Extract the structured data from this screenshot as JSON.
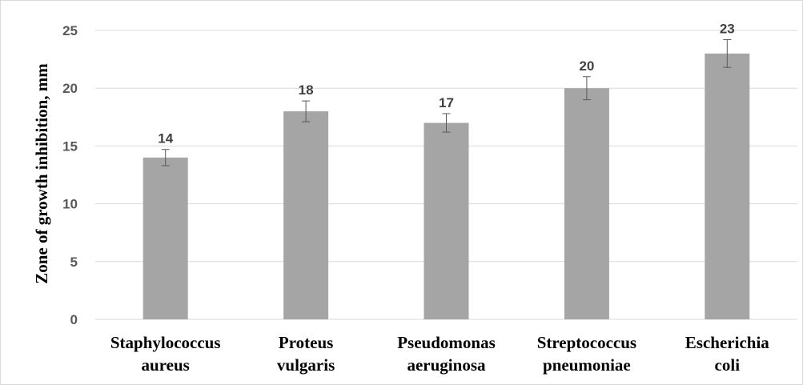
{
  "chart_data": {
    "type": "bar",
    "title": "",
    "xlabel": "",
    "ylabel": "Zone of growth inhibition, mm",
    "categories": [
      [
        "Staphylococcus",
        "aureus"
      ],
      [
        "Proteus",
        "vulgaris"
      ],
      [
        "Pseudomonas",
        "aeruginosa"
      ],
      [
        "Streptococcus",
        "pneumoniae"
      ],
      [
        "Escherichia",
        "coli"
      ]
    ],
    "values": [
      14,
      18,
      17,
      20,
      23
    ],
    "error_bars": [
      0.7,
      0.9,
      0.8,
      1.0,
      1.2
    ],
    "data_labels": [
      "14",
      "18",
      "17",
      "20",
      "23"
    ],
    "ylim": [
      0,
      25
    ],
    "yticks": [
      0,
      5,
      10,
      15,
      20,
      25
    ],
    "grid": true,
    "legend": "none",
    "colors": {
      "bar": "#a5a5a5",
      "grid": "#d9d9d9",
      "error": "#595959"
    }
  }
}
